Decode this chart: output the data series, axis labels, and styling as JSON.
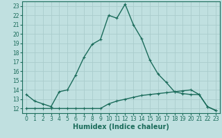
{
  "xlabel": "Humidex (Indice chaleur)",
  "ylabel": "",
  "background_color": "#c0e0e0",
  "grid_color": "#b0d0d0",
  "line_color": "#1a6b5a",
  "xlim": [
    -0.5,
    23.5
  ],
  "ylim": [
    11.5,
    23.5
  ],
  "yticks": [
    12,
    13,
    14,
    15,
    16,
    17,
    18,
    19,
    20,
    21,
    22,
    23
  ],
  "xticks": [
    0,
    1,
    2,
    3,
    4,
    5,
    6,
    7,
    8,
    9,
    10,
    11,
    12,
    13,
    14,
    15,
    16,
    17,
    18,
    19,
    20,
    21,
    22,
    23
  ],
  "series1_x": [
    0,
    1,
    2,
    3,
    4,
    5,
    6,
    7,
    8,
    9,
    10,
    11,
    12,
    13,
    14,
    15,
    16,
    17,
    18,
    19,
    20,
    21,
    22,
    23
  ],
  "series1_y": [
    13.5,
    12.8,
    12.5,
    12.2,
    13.8,
    14.0,
    15.6,
    17.5,
    18.9,
    19.4,
    22.0,
    21.7,
    23.2,
    21.0,
    19.5,
    17.2,
    15.7,
    14.8,
    13.8,
    13.6,
    13.5,
    13.5,
    12.2,
    11.8
  ],
  "series2_x": [
    0,
    1,
    2,
    3,
    4,
    5,
    6,
    7,
    8,
    9,
    10,
    11,
    12,
    13,
    14,
    15,
    16,
    17,
    18,
    19,
    20,
    21,
    22,
    23
  ],
  "series2_y": [
    12.0,
    12.0,
    12.0,
    12.0,
    12.0,
    12.0,
    12.0,
    12.0,
    12.0,
    12.0,
    12.5,
    12.8,
    13.0,
    13.2,
    13.4,
    13.5,
    13.6,
    13.7,
    13.8,
    13.9,
    14.0,
    13.5,
    12.2,
    11.8
  ],
  "marker": "+",
  "marker_size": 3,
  "line_width": 1.0,
  "tick_fontsize": 5.5,
  "xlabel_fontsize": 7
}
